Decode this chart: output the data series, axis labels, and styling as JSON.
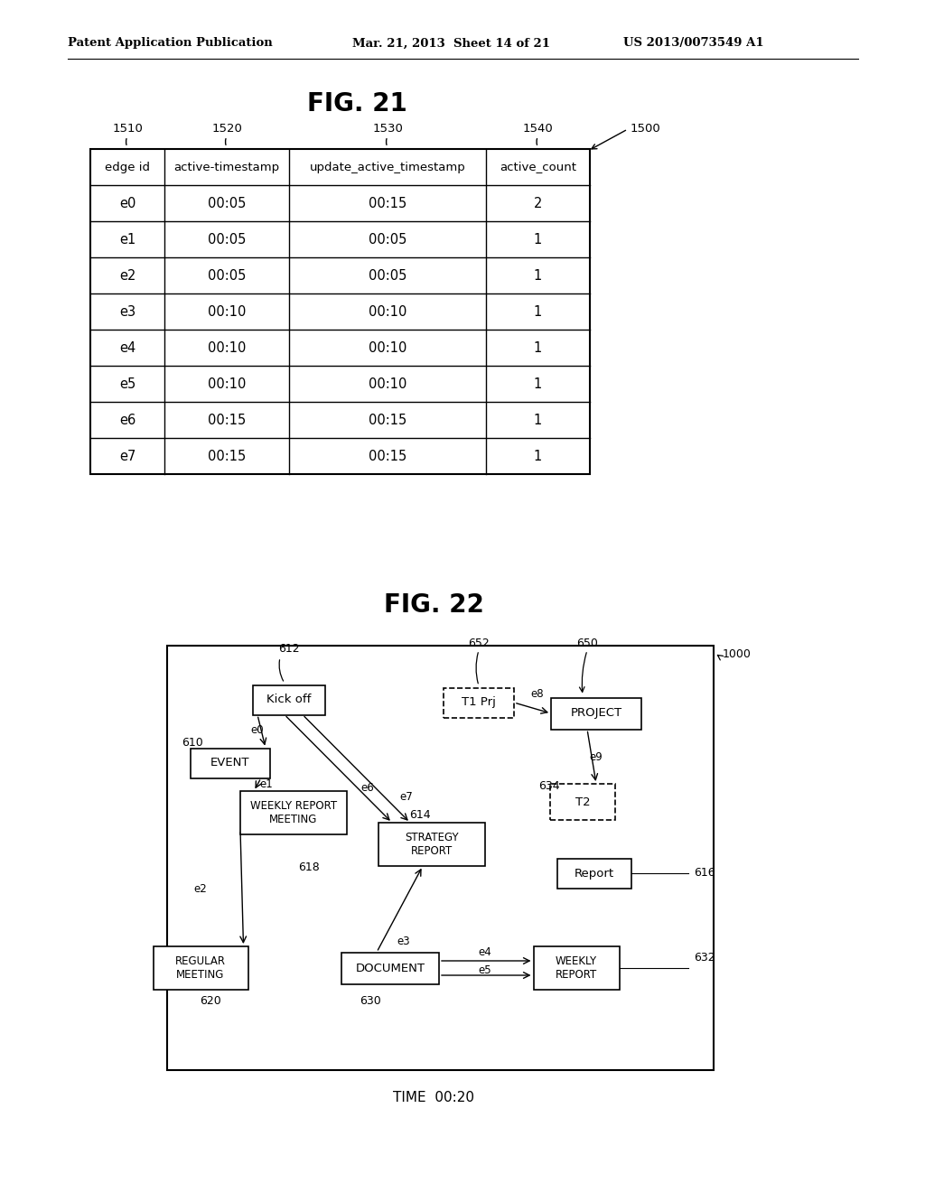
{
  "header_text_left": "Patent Application Publication",
  "header_text_mid": "Mar. 21, 2013  Sheet 14 of 21",
  "header_text_right": "US 2013/0073549 A1",
  "fig21_title": "FIG. 21",
  "fig22_title": "FIG. 22",
  "table_ref": "1500",
  "col_labels": [
    "1510",
    "1520",
    "1530",
    "1540"
  ],
  "col_headers": [
    "edge id",
    "active-timestamp",
    "update_active_timestamp",
    "active_count"
  ],
  "table_data": [
    [
      "e0",
      "00:05",
      "00:15",
      "2"
    ],
    [
      "e1",
      "00:05",
      "00:05",
      "1"
    ],
    [
      "e2",
      "00:05",
      "00:05",
      "1"
    ],
    [
      "e3",
      "00:10",
      "00:10",
      "1"
    ],
    [
      "e4",
      "00:10",
      "00:10",
      "1"
    ],
    [
      "e5",
      "00:10",
      "00:10",
      "1"
    ],
    [
      "e6",
      "00:15",
      "00:15",
      "1"
    ],
    [
      "e7",
      "00:15",
      "00:15",
      "1"
    ]
  ],
  "time_label": "TIME  00:20",
  "bg_color": "#ffffff",
  "text_color": "#000000"
}
